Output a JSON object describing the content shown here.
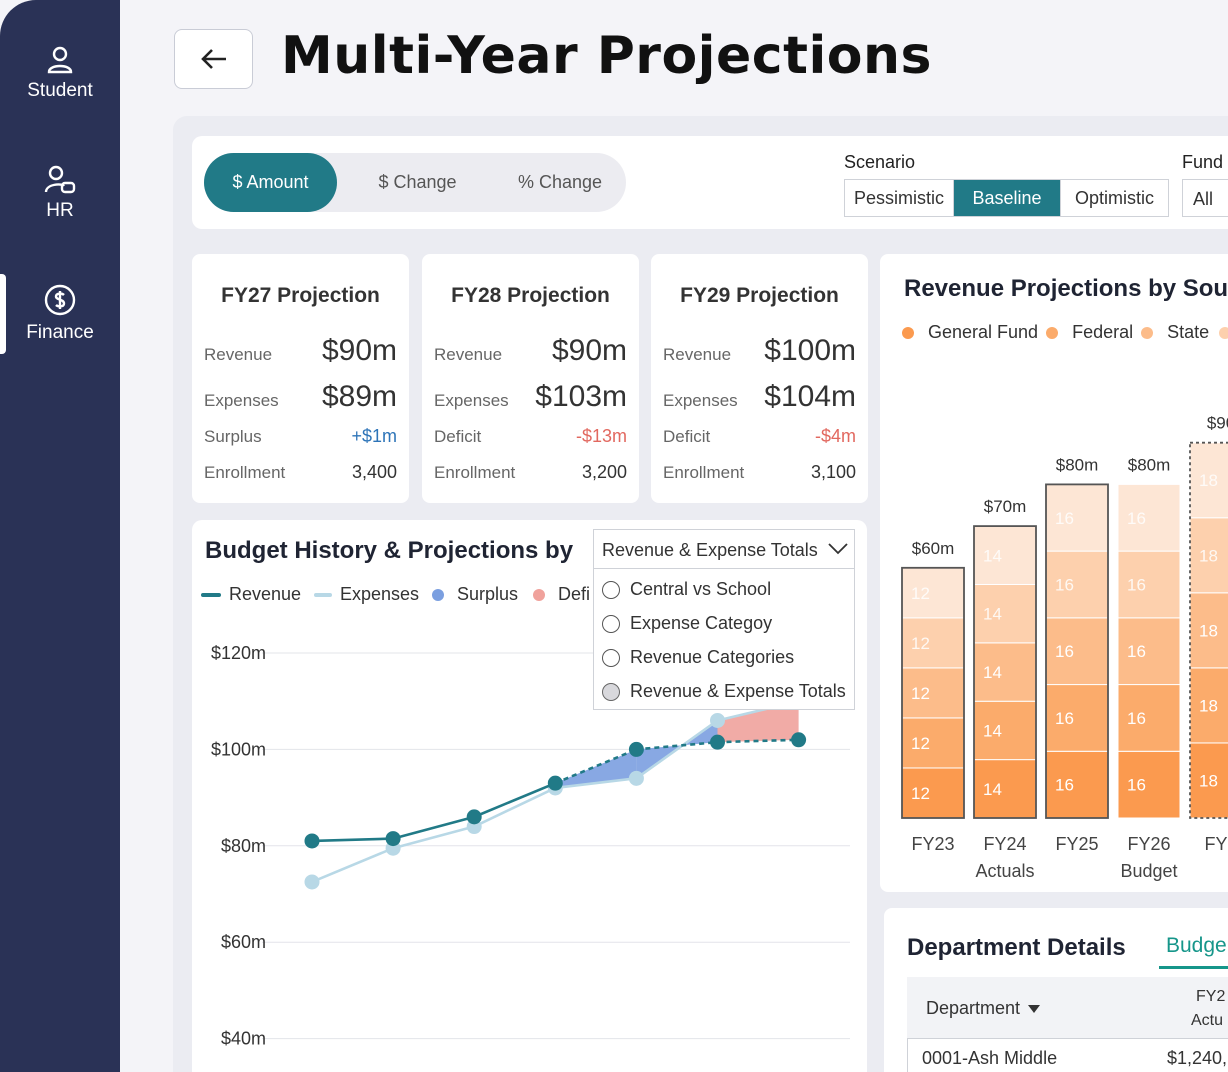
{
  "sidebar": {
    "items": [
      {
        "label": "Student",
        "icon": "user-icon"
      },
      {
        "label": "HR",
        "icon": "users-icon"
      },
      {
        "label": "Finance",
        "icon": "dollar-circle-icon"
      }
    ],
    "active": "Finance"
  },
  "header": {
    "title": "Multi-Year Projections",
    "back_icon": "arrow-left-icon"
  },
  "toolbar": {
    "view_tabs": [
      "$ Amount",
      "$ Change",
      "% Change"
    ],
    "active_view": "$ Amount",
    "scenario_label": "Scenario",
    "scenarios": [
      "Pessimistic",
      "Baseline",
      "Optimistic"
    ],
    "active_scenario": "Baseline",
    "fund_label": "Fund",
    "fund_value": "All"
  },
  "kpis": [
    {
      "title": "FY27 Projection",
      "revenue_label": "Revenue",
      "revenue": "$90m",
      "expenses_label": "Expenses",
      "expenses": "$89m",
      "balance_label": "Surplus",
      "balance": "+$1m",
      "enrollment_label": "Enrollment",
      "enrollment": "3,400"
    },
    {
      "title": "FY28 Projection",
      "revenue_label": "Revenue",
      "revenue": "$90m",
      "expenses_label": "Expenses",
      "expenses": "$103m",
      "balance_label": "Deficit",
      "balance": "-$13m",
      "enrollment_label": "Enrollment",
      "enrollment": "3,200"
    },
    {
      "title": "FY29 Projection",
      "revenue_label": "Revenue",
      "revenue": "$100m",
      "expenses_label": "Expenses",
      "expenses": "$104m",
      "balance_label": "Deficit",
      "balance": "-$4m",
      "enrollment_label": "Enrollment",
      "enrollment": "3,100"
    }
  ],
  "colors": {
    "accent": "#217a87",
    "sidebar": "#2a3256",
    "revenue_line": "#217a87",
    "expenses_line": "#b8d8e6",
    "surplus": "#7b9fe0",
    "deficit": "#f0a29c",
    "positive": "#2d74b8",
    "negative": "#e2685f"
  },
  "budget_chart": {
    "title": "Budget History & Projections by",
    "dropdown_value": "Revenue & Expense Totals",
    "dropdown_options": [
      "Central vs School",
      "Expense Categoy",
      "Revenue Categories",
      "Revenue & Expense Totals"
    ],
    "selected_option": "Revenue & Expense Totals",
    "legend": [
      "Revenue",
      "Expenses",
      "Surplus",
      "Defi"
    ]
  },
  "revenue_chart": {
    "title": "Revenue Projections by Sou",
    "legend": [
      "General Fund",
      "Federal",
      "State"
    ]
  },
  "department": {
    "title": "Department Details",
    "tab": "Budge",
    "col_department": "Department",
    "col_fy_line1": "FY2",
    "col_fy_line2": "Actu",
    "rows": [
      {
        "name": "0001-Ash Middle",
        "value": "$1,240,("
      }
    ]
  },
  "chart_data": [
    {
      "type": "line",
      "title": "Budget History & Projections by",
      "ylabel": "",
      "ylim": [
        40,
        120
      ],
      "yticks": [
        "$120m",
        "$100m",
        "$80m",
        "$60m",
        "$40m"
      ],
      "ytick_values": [
        120,
        100,
        80,
        60,
        40
      ],
      "x_index": [
        0,
        1,
        2,
        3,
        4,
        5,
        6
      ],
      "series": [
        {
          "name": "Revenue",
          "values": [
            81,
            81.5,
            86,
            93,
            100,
            101.5,
            102
          ],
          "projected_from": 3
        },
        {
          "name": "Expenses",
          "values": [
            72.5,
            79.5,
            84,
            92,
            94,
            106,
            110
          ],
          "projected_from": 3
        }
      ]
    },
    {
      "type": "bar",
      "stacked": true,
      "title": "Revenue Projections by Sou",
      "categories": [
        "FY23",
        "FY24 Actuals",
        "FY25",
        "FY26 Budget",
        "FY2"
      ],
      "category_lines": [
        [
          "FY23"
        ],
        [
          "FY24",
          "Actuals"
        ],
        [
          "FY25"
        ],
        [
          "FY26",
          "Budget"
        ],
        [
          "FY2"
        ]
      ],
      "totals": [
        "$60m",
        "$70m",
        "$80m",
        "$80m",
        "$90"
      ],
      "total_values": [
        60,
        70,
        80,
        80,
        90
      ],
      "segment_values": [
        [
          12,
          12,
          12,
          12,
          12
        ],
        [
          14,
          14,
          14,
          14,
          14
        ],
        [
          16,
          16,
          16,
          16,
          16
        ],
        [
          16,
          16,
          16,
          16,
          16
        ],
        [
          18,
          18,
          18,
          18,
          18
        ]
      ],
      "segment_colors": [
        "#fb9a4f",
        "#fbab6b",
        "#fcbc8a",
        "#fdd0ad",
        "#fde6d5"
      ],
      "outlined": [
        true,
        true,
        true,
        false,
        true
      ],
      "dashed_outline": [
        false,
        false,
        false,
        false,
        true
      ]
    }
  ]
}
